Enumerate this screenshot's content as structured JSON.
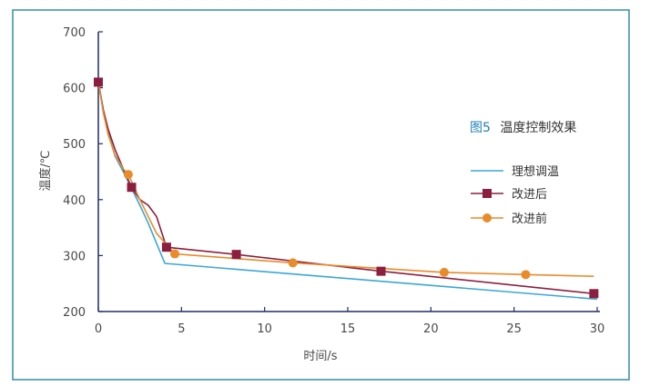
{
  "colors": {
    "frame": "#2f8fa6",
    "axis": "#1f2d6b",
    "ideal": "#3aa7d4",
    "after": "#8c1f3f",
    "before": "#e88b2a",
    "title_fig": "#1f7fb8"
  },
  "chart_data": {
    "type": "line",
    "title_prefix": "图5",
    "title_main": "温度控制效果",
    "xlabel": "时间/s",
    "ylabel": "温度/℃",
    "xlim": [
      0,
      30
    ],
    "ylim": [
      200,
      700
    ],
    "xticks": [
      0,
      5,
      10,
      15,
      20,
      25,
      30
    ],
    "yticks": [
      200,
      300,
      400,
      500,
      600,
      700
    ],
    "grid": false,
    "legend_position": "right",
    "series": [
      {
        "name": "理想调温",
        "color_key": "ideal",
        "marker": "none",
        "x": [
          0,
          0.3,
          0.6,
          1.0,
          1.5,
          2.0,
          2.5,
          3.0,
          3.5,
          4.0,
          30
        ],
        "y": [
          610,
          560,
          520,
          478,
          450,
          420,
          390,
          358,
          322,
          286,
          222
        ]
      },
      {
        "name": "改进后",
        "color_key": "after",
        "marker": "square",
        "x": [
          0,
          0.3,
          0.6,
          1.0,
          1.5,
          2.0,
          2.5,
          3.0,
          3.5,
          4.1,
          8.3,
          17.0,
          29.8
        ],
        "y": [
          610,
          560,
          525,
          490,
          455,
          422,
          400,
          390,
          370,
          315,
          302,
          272,
          232
        ],
        "marker_x": [
          0,
          2.0,
          4.1,
          8.3,
          17.0,
          29.8
        ],
        "marker_y": [
          610,
          422,
          315,
          302,
          272,
          232
        ]
      },
      {
        "name": "改进前",
        "color_key": "before",
        "marker": "circle",
        "x": [
          0,
          0.3,
          0.6,
          1.0,
          1.5,
          1.8,
          2.5,
          3.0,
          3.5,
          4.6,
          11.7,
          20.8,
          25.7,
          29.8
        ],
        "y": [
          610,
          555,
          515,
          480,
          455,
          445,
          400,
          370,
          340,
          303,
          287,
          270,
          266,
          263
        ],
        "marker_x": [
          1.8,
          4.6,
          11.7,
          20.8,
          25.7
        ],
        "marker_y": [
          445,
          303,
          287,
          270,
          266
        ]
      }
    ]
  }
}
